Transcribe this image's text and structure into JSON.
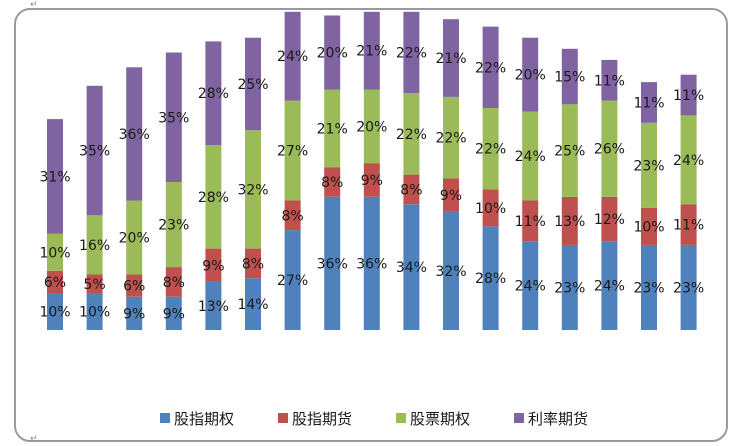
{
  "chart_data": {
    "type": "bar",
    "stacked": true,
    "title": "",
    "xlabel": "",
    "ylabel": "",
    "legend_position": "bottom",
    "grid": false,
    "categories": [
      "",
      "",
      "",
      "",
      "",
      "",
      "",
      "",
      "",
      "",
      "",
      "",
      "",
      "",
      "",
      "",
      ""
    ],
    "series": [
      {
        "name": "股指期权",
        "color": "#4f81bd",
        "values": [
          10,
          10,
          9,
          9,
          13,
          14,
          27,
          36,
          36,
          34,
          32,
          28,
          24,
          23,
          24,
          23,
          23
        ]
      },
      {
        "name": "股指期货",
        "color": "#c0504d",
        "values": [
          6,
          5,
          6,
          8,
          9,
          8,
          8,
          8,
          9,
          8,
          9,
          10,
          11,
          13,
          12,
          10,
          11
        ]
      },
      {
        "name": "股票期权",
        "color": "#9bbb59",
        "values": [
          10,
          16,
          20,
          23,
          28,
          32,
          27,
          21,
          20,
          22,
          22,
          22,
          24,
          25,
          26,
          23,
          24
        ]
      },
      {
        "name": "利率期货",
        "color": "#8064a2",
        "values": [
          31,
          35,
          36,
          35,
          28,
          25,
          24,
          20,
          21,
          22,
          21,
          22,
          20,
          15,
          11,
          11,
          11
        ]
      }
    ],
    "value_suffix": "%"
  }
}
